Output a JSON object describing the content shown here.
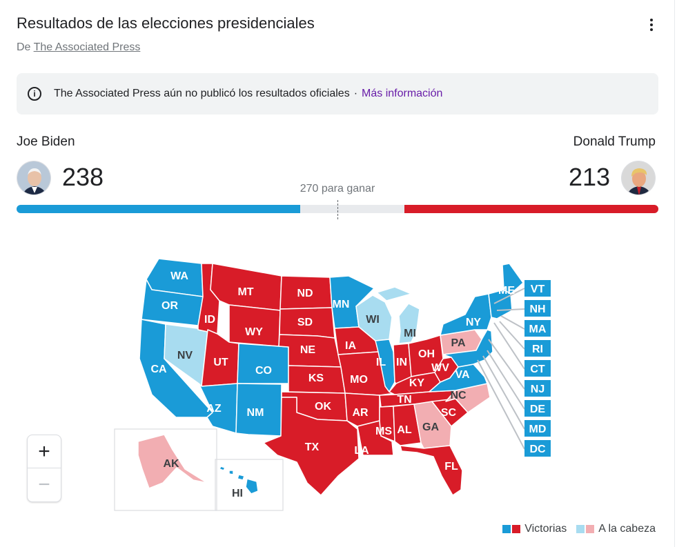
{
  "header": {
    "title": "Resultados de las elecciones presidenciales",
    "source_prefix": "De",
    "source_link": "The Associated Press"
  },
  "notice": {
    "icon": "info-icon",
    "text": "The Associated Press aún no publicó los resultados oficiales",
    "separator": "·",
    "link": "Más información"
  },
  "candidates": {
    "left": {
      "name": "Joe Biden",
      "votes": "238",
      "color": "#1a9bd7"
    },
    "right": {
      "name": "Donald Trump",
      "votes": "213",
      "color": "#d81c28"
    }
  },
  "progress": {
    "to_win_label": "270 para ganar",
    "total_electoral_votes": 538,
    "left_votes": 238,
    "right_votes": 213
  },
  "colors": {
    "dem_won": "#1a9bd7",
    "dem_lead": "#a8dcf0",
    "rep_won": "#d81c28",
    "rep_lead": "#f2aeb2"
  },
  "map": {
    "states": [
      {
        "abbr": "WA",
        "status": "dem_won"
      },
      {
        "abbr": "OR",
        "status": "dem_won"
      },
      {
        "abbr": "CA",
        "status": "dem_won"
      },
      {
        "abbr": "NV",
        "status": "dem_lead"
      },
      {
        "abbr": "ID",
        "status": "rep_won"
      },
      {
        "abbr": "MT",
        "status": "rep_won"
      },
      {
        "abbr": "WY",
        "status": "rep_won"
      },
      {
        "abbr": "UT",
        "status": "rep_won"
      },
      {
        "abbr": "AZ",
        "status": "dem_won"
      },
      {
        "abbr": "CO",
        "status": "dem_won"
      },
      {
        "abbr": "NM",
        "status": "dem_won"
      },
      {
        "abbr": "ND",
        "status": "rep_won"
      },
      {
        "abbr": "SD",
        "status": "rep_won"
      },
      {
        "abbr": "NE",
        "status": "rep_won"
      },
      {
        "abbr": "KS",
        "status": "rep_won"
      },
      {
        "abbr": "OK",
        "status": "rep_won"
      },
      {
        "abbr": "TX",
        "status": "rep_won"
      },
      {
        "abbr": "MN",
        "status": "dem_won"
      },
      {
        "abbr": "IA",
        "status": "rep_won"
      },
      {
        "abbr": "MO",
        "status": "rep_won"
      },
      {
        "abbr": "AR",
        "status": "rep_won"
      },
      {
        "abbr": "LA",
        "status": "rep_won"
      },
      {
        "abbr": "WI",
        "status": "dem_lead"
      },
      {
        "abbr": "IL",
        "status": "dem_won"
      },
      {
        "abbr": "MI",
        "status": "dem_lead"
      },
      {
        "abbr": "IN",
        "status": "rep_won"
      },
      {
        "abbr": "OH",
        "status": "rep_won"
      },
      {
        "abbr": "KY",
        "status": "rep_won"
      },
      {
        "abbr": "TN",
        "status": "rep_won"
      },
      {
        "abbr": "MS",
        "status": "rep_won"
      },
      {
        "abbr": "AL",
        "status": "rep_won"
      },
      {
        "abbr": "GA",
        "status": "rep_lead"
      },
      {
        "abbr": "FL",
        "status": "rep_won"
      },
      {
        "abbr": "SC",
        "status": "rep_won"
      },
      {
        "abbr": "NC",
        "status": "rep_lead"
      },
      {
        "abbr": "VA",
        "status": "dem_won"
      },
      {
        "abbr": "WV",
        "status": "rep_won"
      },
      {
        "abbr": "PA",
        "status": "rep_lead"
      },
      {
        "abbr": "NY",
        "status": "dem_won"
      },
      {
        "abbr": "ME",
        "status": "dem_won"
      },
      {
        "abbr": "AK",
        "status": "rep_lead"
      },
      {
        "abbr": "HI",
        "status": "dem_won"
      }
    ],
    "small_states": [
      "VT",
      "NH",
      "MA",
      "RI",
      "CT",
      "NJ",
      "DE",
      "MD",
      "DC"
    ]
  },
  "zoom": {
    "in": "+",
    "out": "−"
  },
  "legend": {
    "won_label": "Victorias",
    "lead_label": "A la cabeza"
  }
}
